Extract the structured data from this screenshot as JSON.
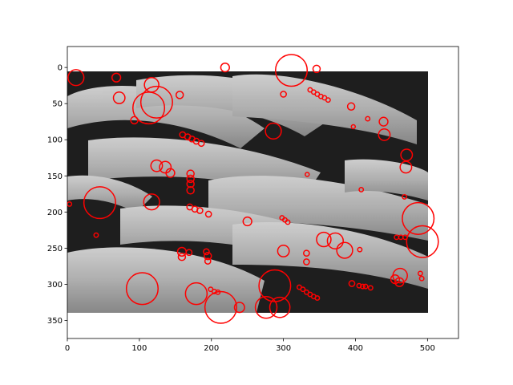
{
  "chart_data": {
    "type": "scatter",
    "subtype": "blob-detection-overlay",
    "description_of_background": "grayscale photograph of a school of soldierfish",
    "xlim": [
      0,
      543
    ],
    "ylim": [
      375,
      -29
    ],
    "x_ticks": [
      0,
      100,
      200,
      300,
      400,
      500
    ],
    "y_ticks": [
      0,
      50,
      100,
      150,
      200,
      250,
      300,
      350
    ],
    "image_extent": {
      "x": [
        0,
        499
      ],
      "y": [
        0,
        333
      ]
    },
    "grid": false,
    "marker": {
      "shape": "circle",
      "fill": "none",
      "edge_color": "#ff0000"
    },
    "series": [
      {
        "points": [
          {
            "x": 12,
            "y": 14,
            "r": 11
          },
          {
            "x": 68,
            "y": 14,
            "r": 6
          },
          {
            "x": 219,
            "y": 0,
            "r": 6
          },
          {
            "x": 311,
            "y": 4,
            "r": 22
          },
          {
            "x": 346,
            "y": 2,
            "r": 5
          },
          {
            "x": 117,
            "y": 24,
            "r": 10
          },
          {
            "x": 72,
            "y": 42,
            "r": 8
          },
          {
            "x": 113,
            "y": 56,
            "r": 22
          },
          {
            "x": 124,
            "y": 48,
            "r": 22
          },
          {
            "x": 156,
            "y": 38,
            "r": 5
          },
          {
            "x": 300,
            "y": 37,
            "r": 4
          },
          {
            "x": 337,
            "y": 31,
            "r": 3
          },
          {
            "x": 342,
            "y": 34,
            "r": 3
          },
          {
            "x": 347,
            "y": 37,
            "r": 3
          },
          {
            "x": 352,
            "y": 40,
            "r": 3
          },
          {
            "x": 357,
            "y": 42,
            "r": 3
          },
          {
            "x": 362,
            "y": 45,
            "r": 3
          },
          {
            "x": 394,
            "y": 54,
            "r": 5
          },
          {
            "x": 93,
            "y": 73,
            "r": 5
          },
          {
            "x": 439,
            "y": 75,
            "r": 6
          },
          {
            "x": 417,
            "y": 71,
            "r": 3
          },
          {
            "x": 397,
            "y": 82,
            "r": 2
          },
          {
            "x": 286,
            "y": 88,
            "r": 11
          },
          {
            "x": 440,
            "y": 93,
            "r": 8
          },
          {
            "x": 160,
            "y": 93,
            "r": 4
          },
          {
            "x": 167,
            "y": 96,
            "r": 4
          },
          {
            "x": 173,
            "y": 99,
            "r": 4
          },
          {
            "x": 179,
            "y": 102,
            "r": 4
          },
          {
            "x": 186,
            "y": 105,
            "r": 4
          },
          {
            "x": 471,
            "y": 121,
            "r": 8
          },
          {
            "x": 470,
            "y": 138,
            "r": 8
          },
          {
            "x": 124,
            "y": 136,
            "r": 8
          },
          {
            "x": 136,
            "y": 138,
            "r": 8
          },
          {
            "x": 143,
            "y": 146,
            "r": 6
          },
          {
            "x": 171,
            "y": 147,
            "r": 5
          },
          {
            "x": 171,
            "y": 154,
            "r": 5
          },
          {
            "x": 171,
            "y": 161,
            "r": 5
          },
          {
            "x": 171,
            "y": 170,
            "r": 5
          },
          {
            "x": 333,
            "y": 148,
            "r": 2
          },
          {
            "x": 408,
            "y": 169,
            "r": 3
          },
          {
            "x": 468,
            "y": 179,
            "r": 3
          },
          {
            "x": 45,
            "y": 187,
            "r": 22
          },
          {
            "x": 117,
            "y": 186,
            "r": 11
          },
          {
            "x": 3,
            "y": 189,
            "r": 3
          },
          {
            "x": 170,
            "y": 193,
            "r": 4
          },
          {
            "x": 177,
            "y": 196,
            "r": 4
          },
          {
            "x": 184,
            "y": 198,
            "r": 4
          },
          {
            "x": 196,
            "y": 203,
            "r": 4
          },
          {
            "x": 487,
            "y": 209,
            "r": 22
          },
          {
            "x": 250,
            "y": 213,
            "r": 6
          },
          {
            "x": 298,
            "y": 208,
            "r": 3
          },
          {
            "x": 302,
            "y": 211,
            "r": 3
          },
          {
            "x": 306,
            "y": 214,
            "r": 3
          },
          {
            "x": 40,
            "y": 232,
            "r": 3
          },
          {
            "x": 457,
            "y": 235,
            "r": 3
          },
          {
            "x": 463,
            "y": 235,
            "r": 3
          },
          {
            "x": 469,
            "y": 235,
            "r": 3
          },
          {
            "x": 493,
            "y": 241,
            "r": 22
          },
          {
            "x": 356,
            "y": 238,
            "r": 10
          },
          {
            "x": 372,
            "y": 240,
            "r": 11
          },
          {
            "x": 385,
            "y": 253,
            "r": 11
          },
          {
            "x": 406,
            "y": 252,
            "r": 3
          },
          {
            "x": 300,
            "y": 254,
            "r": 8
          },
          {
            "x": 159,
            "y": 255,
            "r": 6
          },
          {
            "x": 169,
            "y": 256,
            "r": 4
          },
          {
            "x": 193,
            "y": 255,
            "r": 4
          },
          {
            "x": 159,
            "y": 262,
            "r": 5
          },
          {
            "x": 195,
            "y": 261,
            "r": 5
          },
          {
            "x": 195,
            "y": 268,
            "r": 4
          },
          {
            "x": 332,
            "y": 257,
            "r": 4
          },
          {
            "x": 332,
            "y": 269,
            "r": 4
          },
          {
            "x": 104,
            "y": 306,
            "r": 22
          },
          {
            "x": 179,
            "y": 313,
            "r": 15
          },
          {
            "x": 288,
            "y": 302,
            "r": 22
          },
          {
            "x": 462,
            "y": 288,
            "r": 10
          },
          {
            "x": 455,
            "y": 293,
            "r": 6
          },
          {
            "x": 461,
            "y": 297,
            "r": 6
          },
          {
            "x": 490,
            "y": 285,
            "r": 3
          },
          {
            "x": 492,
            "y": 292,
            "r": 3
          },
          {
            "x": 395,
            "y": 299,
            "r": 4
          },
          {
            "x": 405,
            "y": 302,
            "r": 3
          },
          {
            "x": 410,
            "y": 303,
            "r": 3
          },
          {
            "x": 414,
            "y": 303,
            "r": 3
          },
          {
            "x": 421,
            "y": 305,
            "r": 3
          },
          {
            "x": 322,
            "y": 304,
            "r": 3
          },
          {
            "x": 327,
            "y": 307,
            "r": 3
          },
          {
            "x": 332,
            "y": 311,
            "r": 3
          },
          {
            "x": 337,
            "y": 314,
            "r": 3
          },
          {
            "x": 342,
            "y": 317,
            "r": 3
          },
          {
            "x": 347,
            "y": 319,
            "r": 3
          },
          {
            "x": 199,
            "y": 307,
            "r": 3
          },
          {
            "x": 204,
            "y": 310,
            "r": 3
          },
          {
            "x": 209,
            "y": 311,
            "r": 3
          },
          {
            "x": 213,
            "y": 332,
            "r": 22
          },
          {
            "x": 239,
            "y": 332,
            "r": 7
          },
          {
            "x": 276,
            "y": 332,
            "r": 15
          },
          {
            "x": 295,
            "y": 332,
            "r": 14
          }
        ]
      }
    ]
  }
}
